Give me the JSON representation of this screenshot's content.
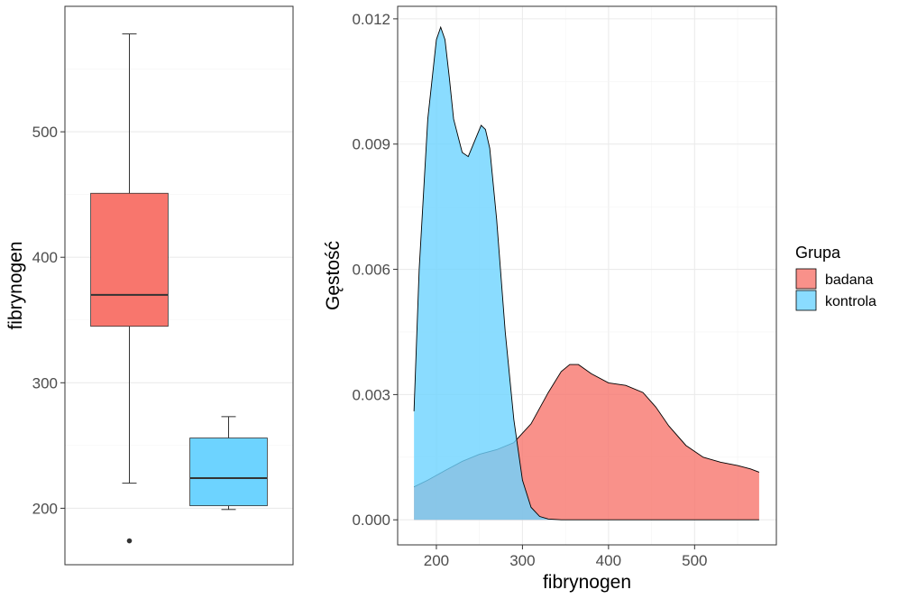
{
  "chart_data": [
    {
      "type": "boxplot",
      "ylabel": "fibrynogen",
      "xlabel": "",
      "ylim": [
        155,
        600
      ],
      "yticks": [
        200,
        300,
        400,
        500
      ],
      "grid": true,
      "boxes": [
        {
          "group": "badana",
          "color": "#F8766D",
          "whisker_low": 220,
          "q1": 345,
          "median": 370,
          "q3": 451,
          "whisker_high": 578,
          "outliers": [
            174
          ]
        },
        {
          "group": "kontrola",
          "color": "#6DD3FF",
          "whisker_low": 199,
          "q1": 202,
          "median": 224,
          "q3": 256,
          "whisker_high": 273,
          "outliers": []
        }
      ]
    },
    {
      "type": "area",
      "xlabel": "fibrynogen",
      "ylabel": "Gęstość",
      "xlim": [
        155,
        595
      ],
      "ylim": [
        -0.0006,
        0.0123
      ],
      "xticks": [
        200,
        300,
        400,
        500
      ],
      "yticks": [
        0.0,
        0.003,
        0.006,
        0.009,
        0.012
      ],
      "ytick_labels": [
        "0.000",
        "0.003",
        "0.006",
        "0.009",
        "0.012"
      ],
      "grid": true,
      "legend": {
        "title": "Grupa",
        "position": "right"
      },
      "series": [
        {
          "name": "badana",
          "color": "#F8766D",
          "x": [
            174,
            190,
            210,
            230,
            250,
            270,
            290,
            310,
            330,
            345,
            355,
            365,
            380,
            400,
            420,
            440,
            455,
            470,
            490,
            510,
            530,
            550,
            565,
            575
          ],
          "y": [
            0.00079,
            0.00095,
            0.00118,
            0.0014,
            0.00157,
            0.00168,
            0.00185,
            0.0023,
            0.00305,
            0.00355,
            0.00372,
            0.00372,
            0.0035,
            0.00328,
            0.00322,
            0.00305,
            0.0027,
            0.00225,
            0.00178,
            0.0015,
            0.00138,
            0.0013,
            0.00122,
            0.00114
          ]
        },
        {
          "name": "kontrola",
          "color": "#6DD3FF",
          "x": [
            174,
            180,
            190,
            200,
            205,
            210,
            215,
            220,
            230,
            237,
            245,
            252,
            257,
            262,
            270,
            280,
            290,
            300,
            310,
            320,
            330,
            345,
            360,
            380,
            400,
            575
          ],
          "y": [
            0.0026,
            0.006,
            0.0096,
            0.0115,
            0.0118,
            0.0115,
            0.0106,
            0.0096,
            0.0088,
            0.0087,
            0.0091,
            0.00945,
            0.00935,
            0.0089,
            0.0072,
            0.0045,
            0.0024,
            0.00095,
            0.0003,
            8e-05,
            2e-05,
            0.0,
            0.0,
            0.0,
            0.0,
            0.0
          ]
        }
      ]
    }
  ]
}
